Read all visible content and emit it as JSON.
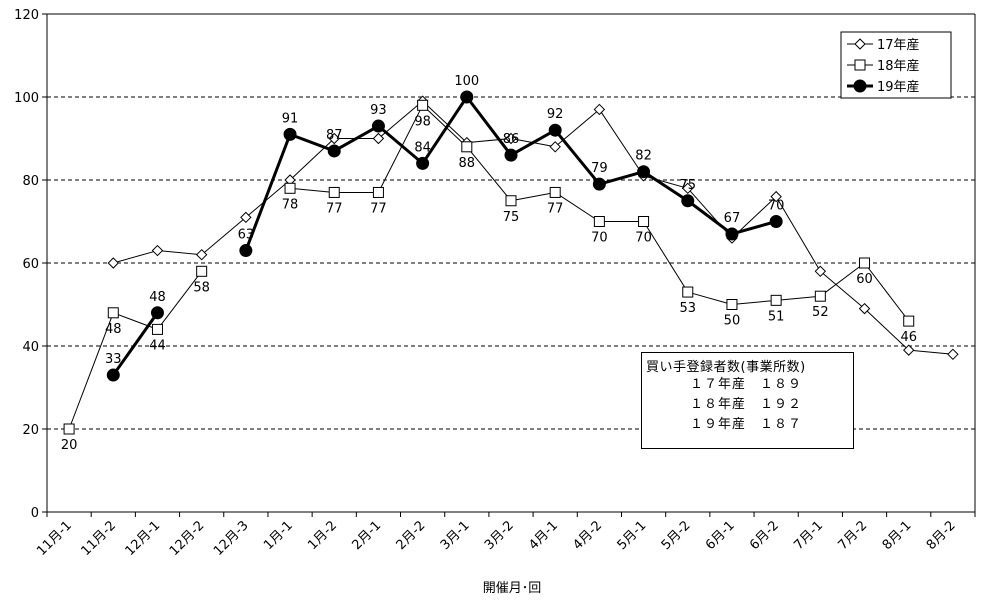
{
  "chart_data": {
    "type": "line",
    "title": "",
    "xlabel": "開催月･回",
    "ylabel": "",
    "ylim": [
      0,
      120
    ],
    "yticks": [
      0,
      20,
      40,
      60,
      80,
      100,
      120
    ],
    "grid": "horizontal dashed",
    "legend_position": "top-right",
    "categories": [
      "11月-1",
      "11月-2",
      "12月-1",
      "12月-2",
      "12月-3",
      "1月-1",
      "1月-2",
      "2月-1",
      "2月-2",
      "3月-1",
      "3月-2",
      "4月-1",
      "4月-2",
      "5月-1",
      "5月-2",
      "6月-1",
      "6月-2",
      "7月-1",
      "7月-2",
      "8月-1",
      "8月-2"
    ],
    "series": [
      {
        "name": "17年産",
        "marker": "diamond-open",
        "values": [
          null,
          60,
          63,
          62,
          71,
          80,
          90,
          90,
          99,
          89,
          90,
          88,
          97,
          81,
          78,
          66,
          76,
          58,
          49,
          39,
          38
        ],
        "labels": [
          null,
          null,
          null,
          null,
          null,
          null,
          null,
          null,
          null,
          null,
          null,
          null,
          null,
          null,
          null,
          null,
          null,
          null,
          null,
          null,
          null
        ]
      },
      {
        "name": "18年産",
        "marker": "square-open",
        "values": [
          20,
          48,
          44,
          58,
          null,
          78,
          77,
          77,
          98,
          88,
          75,
          77,
          70,
          70,
          53,
          50,
          51,
          52,
          60,
          46,
          null
        ],
        "labels": [
          "20",
          "48",
          "44",
          "58",
          null,
          "78",
          "77",
          "77",
          "98",
          "88",
          "75",
          "77",
          "70",
          "70",
          "53",
          "50",
          "51",
          "52",
          "60",
          "46",
          null
        ]
      },
      {
        "name": "19年産",
        "marker": "circle-filled",
        "values": [
          null,
          33,
          48,
          null,
          63,
          91,
          87,
          93,
          84,
          100,
          86,
          92,
          79,
          82,
          75,
          67,
          70,
          null,
          null,
          null,
          null
        ],
        "labels": [
          null,
          "33",
          "48",
          null,
          "63",
          "91",
          "87",
          "93",
          "84",
          "100",
          "86",
          "92",
          "79",
          "82",
          "75",
          "67",
          "70",
          null,
          null,
          null,
          null
        ]
      }
    ]
  },
  "infobox": {
    "title": "買い手登録者数(事業所数)",
    "lines": [
      "１７年産　１８９",
      "１８年産　１９２",
      "１９年産　１８７"
    ]
  }
}
